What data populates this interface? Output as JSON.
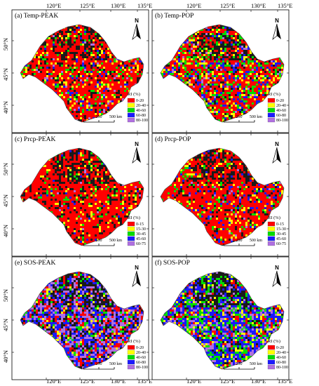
{
  "figure": {
    "top_lon_labels": [
      "120°E",
      "125°E",
      "130°E",
      "135°E"
    ],
    "bottom_lon_labels": [
      "120°E",
      "125°E",
      "130°E",
      "135°E"
    ],
    "lat_labels": [
      "50°N",
      "45°N",
      "40°N"
    ],
    "north_label": "N",
    "scale": {
      "zero": "0",
      "mid": "250",
      "end": "500 km"
    },
    "legend_title": "RI (%)"
  },
  "panels": [
    {
      "title": "(a) Temp-PEAK",
      "legend": [
        "0-20",
        "20-40",
        "40-60",
        "60-80",
        "80-100"
      ],
      "weights": [
        0.58,
        0.12,
        0.08,
        0.05,
        0.03,
        0.14
      ]
    },
    {
      "title": "(b) Temp-POP",
      "legend": [
        "0-20",
        "20-40",
        "40-60",
        "60-80",
        "80-100"
      ],
      "weights": [
        0.45,
        0.14,
        0.16,
        0.13,
        0.04,
        0.08
      ]
    },
    {
      "title": "(c) Prcp-PEAK",
      "legend": [
        "0-15",
        "15-30",
        "30-45",
        "45-60",
        "60-75"
      ],
      "weights": [
        0.7,
        0.08,
        0.05,
        0.02,
        0.01,
        0.14
      ]
    },
    {
      "title": "(d) Prcp-POP",
      "legend": [
        "0-15",
        "15-30",
        "30-45",
        "45-60",
        "60-75"
      ],
      "weights": [
        0.68,
        0.1,
        0.06,
        0.06,
        0.02,
        0.08
      ]
    },
    {
      "title": "(e) SOS-PEAK",
      "legend": [
        "0-20",
        "20-40",
        "40-60",
        "60-80",
        "80-100"
      ],
      "weights": [
        0.18,
        0.06,
        0.08,
        0.25,
        0.28,
        0.15
      ]
    },
    {
      "title": "(f) SOS-POP",
      "legend": [
        "0-20",
        "20-40",
        "40-60",
        "60-80",
        "80-100"
      ],
      "weights": [
        0.12,
        0.1,
        0.22,
        0.32,
        0.14,
        0.1
      ]
    }
  ],
  "colors": {
    "classes": [
      "#ff0000",
      "#ffff00",
      "#00dd00",
      "#1a1aff",
      "#b070e0"
    ],
    "nodata": "#1a1a1a",
    "panel_background": "#ffffff",
    "border": "#000000"
  }
}
